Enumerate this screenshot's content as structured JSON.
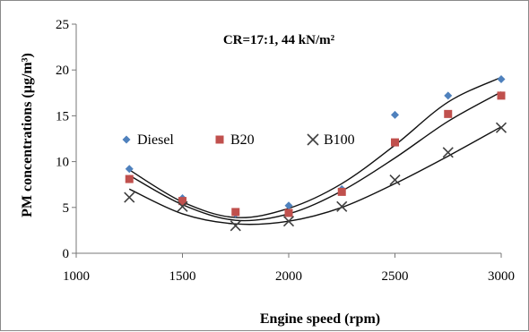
{
  "chart_data": {
    "type": "scatter",
    "annotation": "CR=17:1, 44 kN/m²",
    "xlabel": "Engine speed (rpm)",
    "ylabel": "PM concentrations (µg/m³)",
    "xlim": [
      1000,
      3000
    ],
    "ylim": [
      0,
      25
    ],
    "xticks": [
      1000,
      1500,
      2000,
      2500,
      3000
    ],
    "yticks": [
      0,
      5,
      10,
      15,
      20,
      25
    ],
    "grid": "none",
    "legend_position": "inside-left",
    "x": [
      1250,
      1500,
      1750,
      2000,
      2250,
      2500,
      2750,
      3000
    ],
    "series": [
      {
        "name": "Diesel",
        "marker": "diamond",
        "color": "#4F81BD",
        "values": [
          9.2,
          6.0,
          4.3,
          5.2,
          7.0,
          15.1,
          17.2,
          19.0
        ],
        "trend": [
          [
            1250,
            9.1
          ],
          [
            1500,
            5.6
          ],
          [
            1750,
            3.9
          ],
          [
            2000,
            4.9
          ],
          [
            2250,
            7.6
          ],
          [
            2500,
            11.8
          ],
          [
            2750,
            16.5
          ],
          [
            3000,
            19.2
          ]
        ]
      },
      {
        "name": "B20",
        "marker": "square",
        "color": "#C0504D",
        "values": [
          8.1,
          5.7,
          4.5,
          4.4,
          6.7,
          12.1,
          15.2,
          17.2
        ],
        "trend": [
          [
            1250,
            8.5
          ],
          [
            1500,
            5.3
          ],
          [
            1750,
            3.6
          ],
          [
            2000,
            4.3
          ],
          [
            2250,
            6.8
          ],
          [
            2500,
            10.4
          ],
          [
            2750,
            14.4
          ],
          [
            3000,
            17.6
          ]
        ]
      },
      {
        "name": "B100",
        "marker": "x",
        "color": "#404040",
        "values": [
          6.1,
          5.1,
          3.0,
          3.5,
          5.1,
          8.0,
          11.0,
          13.7
        ],
        "trend": [
          [
            1250,
            7.0
          ],
          [
            1500,
            4.3
          ],
          [
            1750,
            3.2
          ],
          [
            2000,
            3.5
          ],
          [
            2250,
            5.0
          ],
          [
            2500,
            7.6
          ],
          [
            2750,
            10.6
          ],
          [
            3000,
            13.8
          ]
        ]
      }
    ]
  }
}
